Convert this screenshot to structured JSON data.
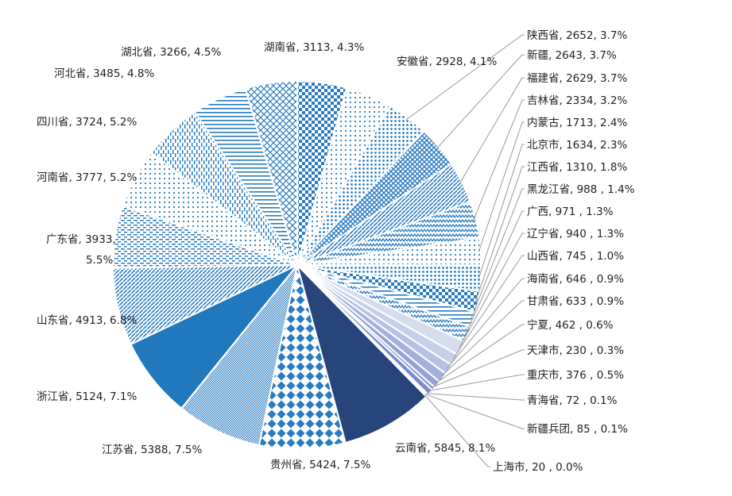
{
  "chart_data": {
    "type": "pie",
    "title": "",
    "slices": [
      {
        "name": "湖南省",
        "value": 3113,
        "pct": "4.3%",
        "label": "湖南省, 3113, 4.3%",
        "fill": "url(#p-checker)"
      },
      {
        "name": "安徽省",
        "value": 2928,
        "pct": "4.1%",
        "label": "安徽省, 2928, 4.1%",
        "fill": "url(#p-dots)"
      },
      {
        "name": "陕西省",
        "value": 2652,
        "pct": "3.7%",
        "label": "陕西省, 2652, 3.7%",
        "fill": "url(#p-dots2)"
      },
      {
        "name": "新疆",
        "value": 2643,
        "pct": "3.7%",
        "label": "新疆, 2643, 3.7%",
        "fill": "url(#p-grid)"
      },
      {
        "name": "福建省",
        "value": 2629,
        "pct": "3.7%",
        "label": "福建省, 2629, 3.7%",
        "fill": "url(#p-diag)"
      },
      {
        "name": "吉林省",
        "value": 2334,
        "pct": "3.2%",
        "label": "吉林省, 2334, 3.2%",
        "fill": "url(#p-zigzag)"
      },
      {
        "name": "内蒙古",
        "value": 1713,
        "pct": "2.4%",
        "label": "内蒙古, 1713, 2.4%",
        "fill": "url(#p-dots)"
      },
      {
        "name": "北京市",
        "value": 1634,
        "pct": "2.3%",
        "label": "北京市, 1634, 2.3%",
        "fill": "url(#p-dots2)"
      },
      {
        "name": "江西省",
        "value": 1310,
        "pct": "1.8%",
        "label": "江西省, 1310, 1.8%",
        "fill": "url(#p-checker)"
      },
      {
        "name": "黑龙江省",
        "value": 988,
        "pct": "1.4%",
        "label": "黑龙江省, 988 , 1.4%",
        "fill": "url(#p-hlines)"
      },
      {
        "name": "广西",
        "value": 971,
        "pct": "1.3%",
        "label": "广西, 971 , 1.3%",
        "fill": "url(#p-zigzag)"
      },
      {
        "name": "辽宁省",
        "value": 940,
        "pct": "1.3%",
        "label": "辽宁省, 940 , 1.3%",
        "fill": "#d4dcee"
      },
      {
        "name": "山西省",
        "value": 745,
        "pct": "1.0%",
        "label": "山西省, 745 , 1.0%",
        "fill": "#c7d0ea"
      },
      {
        "name": "海南省",
        "value": 646,
        "pct": "0.9%",
        "label": "海南省, 646 , 0.9%",
        "fill": "#b6c1e4"
      },
      {
        "name": "甘肃省",
        "value": 633,
        "pct": "0.9%",
        "label": "甘肃省, 633 , 0.9%",
        "fill": "#a4b1dc"
      },
      {
        "name": "宁夏",
        "value": 462,
        "pct": "0.6%",
        "label": "宁夏, 462 , 0.6%",
        "fill": "#94a3d6"
      },
      {
        "name": "天津市",
        "value": 230,
        "pct": "0.3%",
        "label": "天津市, 230 , 0.3%",
        "fill": "#8697cf"
      },
      {
        "name": "重庆市",
        "value": 376,
        "pct": "0.5%",
        "label": "重庆市, 376 , 0.5%",
        "fill": "#7a8ccb"
      },
      {
        "name": "青海省",
        "value": 72,
        "pct": "0.1%",
        "label": "青海省, 72 , 0.1%",
        "fill": "#6f82c6"
      },
      {
        "name": "新疆兵团",
        "value": 85,
        "pct": "0.1%",
        "label": "新疆兵团, 85 , 0.1%",
        "fill": "#6578c0"
      },
      {
        "name": "上海市",
        "value": 20,
        "pct": "0.0%",
        "label": "上海市, 20 , 0.0%",
        "fill": "#5b6fba"
      },
      {
        "name": "云南省",
        "value": 5845,
        "pct": "8.1%",
        "label": "云南省, 5845, 8.1%",
        "fill": "#27457b"
      },
      {
        "name": "贵州省",
        "value": 5424,
        "pct": "7.5%",
        "label": "贵州省, 5424, 7.5%",
        "fill": "url(#p-diamond)"
      },
      {
        "name": "江苏省",
        "value": 5388,
        "pct": "7.5%",
        "label": "江苏省, 5388, 7.5%",
        "fill": "url(#p-fine)"
      },
      {
        "name": "浙江省",
        "value": 5124,
        "pct": "7.1%",
        "label": "浙江省, 5124, 7.1%",
        "fill": "#2278bd"
      },
      {
        "name": "山东省",
        "value": 4913,
        "pct": "6.8%",
        "label": "山东省, 4913, 6.8%",
        "fill": "url(#p-diag)"
      },
      {
        "name": "广东省",
        "value": 3933,
        "pct": "5.5%",
        "label": [
          "广东省, 3933,",
          "5.5%"
        ],
        "fill": "url(#p-hdash)"
      },
      {
        "name": "河南省",
        "value": 3777,
        "pct": "5.2%",
        "label": "河南省, 3777, 5.2%",
        "fill": "url(#p-dots)"
      },
      {
        "name": "四川省",
        "value": 3724,
        "pct": "5.2%",
        "label": "四川省, 3724, 5.2%",
        "fill": "url(#p-vdash)"
      },
      {
        "name": "河北省",
        "value": 3485,
        "pct": "4.8%",
        "label": "河北省, 3485, 4.8%",
        "fill": "url(#p-hlines)"
      },
      {
        "name": "湖北省",
        "value": 3266,
        "pct": "4.5%",
        "label": "湖北省, 3266, 4.5%",
        "fill": "url(#p-lattice)"
      }
    ]
  }
}
